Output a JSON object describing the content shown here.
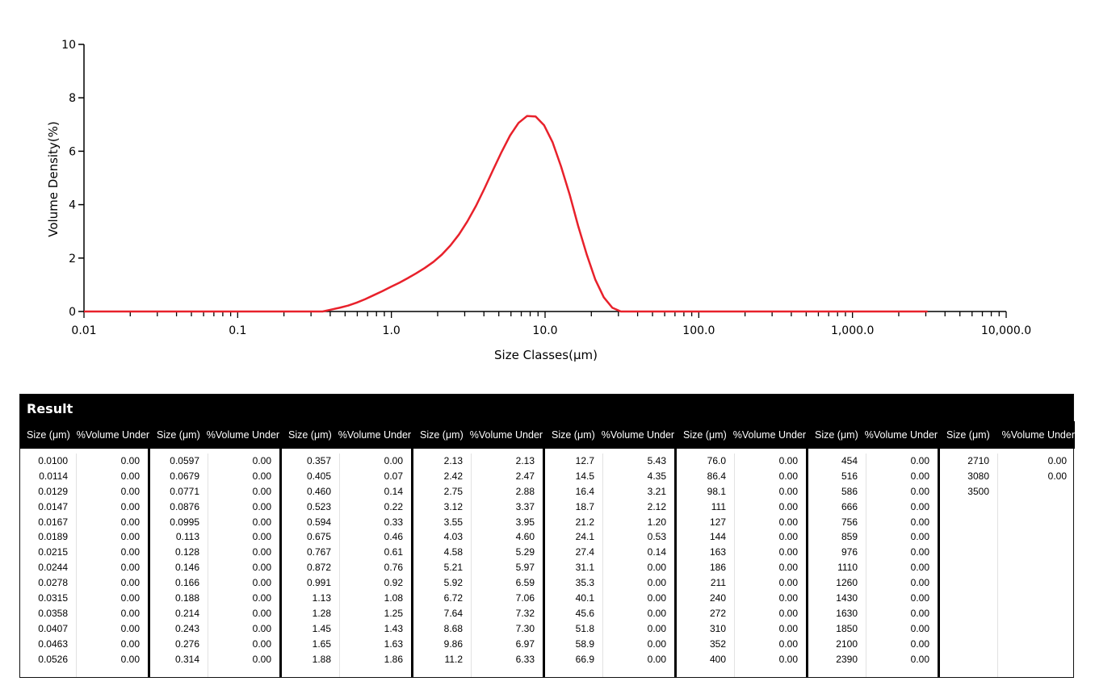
{
  "chart_data": {
    "type": "line",
    "xscale": "log",
    "xlim": [
      0.01,
      10000
    ],
    "ylim": [
      0,
      10
    ],
    "xlabel": "Size Classes(μm)",
    "ylabel": "Volume Density(%)",
    "xtick_labels": [
      "0.01",
      "0.1",
      "1.0",
      "10.0",
      "100.0",
      "1,000.0",
      "10,000.0"
    ],
    "yticks": [
      0,
      2,
      4,
      6,
      8,
      10
    ],
    "line_color": "#e8212b",
    "series": [
      {
        "x": [
          0.01,
          0.0114,
          0.0129,
          0.0147,
          0.0167,
          0.0189,
          0.0215,
          0.0244,
          0.0278,
          0.0315,
          0.0358,
          0.0407,
          0.0463,
          0.0526,
          0.0597,
          0.0679,
          0.0771,
          0.0876,
          0.0995,
          0.113,
          0.128,
          0.146,
          0.166,
          0.188,
          0.214,
          0.243,
          0.276,
          0.314,
          0.357,
          0.405,
          0.46,
          0.523,
          0.594,
          0.675,
          0.767,
          0.872,
          0.991,
          1.13,
          1.28,
          1.45,
          1.65,
          1.88,
          2.13,
          2.42,
          2.75,
          3.12,
          3.55,
          4.03,
          4.58,
          5.21,
          5.92,
          6.72,
          7.64,
          8.68,
          9.86,
          11.2,
          12.7,
          14.5,
          16.4,
          18.7,
          21.2,
          24.1,
          27.4,
          31.1,
          35.3,
          40.1,
          45.6,
          51.8,
          58.9,
          66.9,
          76.0,
          86.4,
          98.1,
          111,
          127,
          144,
          163,
          186,
          211,
          240,
          272,
          310,
          352,
          400,
          454,
          516,
          586,
          666,
          756,
          859,
          976,
          1110,
          1260,
          1430,
          1630,
          1850,
          2100,
          2390,
          2710,
          3080
        ],
        "y": [
          0,
          0,
          0,
          0,
          0,
          0,
          0,
          0,
          0,
          0,
          0,
          0,
          0,
          0,
          0,
          0,
          0,
          0,
          0,
          0,
          0,
          0,
          0,
          0,
          0,
          0,
          0,
          0,
          0.0,
          0.07,
          0.14,
          0.22,
          0.33,
          0.46,
          0.61,
          0.76,
          0.92,
          1.08,
          1.25,
          1.43,
          1.63,
          1.86,
          2.13,
          2.47,
          2.88,
          3.37,
          3.95,
          4.6,
          5.29,
          5.97,
          6.59,
          7.06,
          7.32,
          7.3,
          6.97,
          6.33,
          5.43,
          4.35,
          3.21,
          2.12,
          1.2,
          0.53,
          0.14,
          0,
          0,
          0,
          0,
          0,
          0,
          0,
          0,
          0,
          0,
          0,
          0,
          0,
          0,
          0,
          0,
          0,
          0,
          0,
          0,
          0,
          0,
          0,
          0,
          0,
          0,
          0,
          0,
          0,
          0,
          0,
          0,
          0,
          0,
          0,
          0,
          0
        ]
      }
    ]
  },
  "result": {
    "title": "Result",
    "size_header": "Size (μm)",
    "vol_header": "%Volume Under",
    "groups": [
      {
        "sizes": [
          "0.0100",
          "0.0114",
          "0.0129",
          "0.0147",
          "0.0167",
          "0.0189",
          "0.0215",
          "0.0244",
          "0.0278",
          "0.0315",
          "0.0358",
          "0.0407",
          "0.0463",
          "0.0526"
        ],
        "vols": [
          "0.00",
          "0.00",
          "0.00",
          "0.00",
          "0.00",
          "0.00",
          "0.00",
          "0.00",
          "0.00",
          "0.00",
          "0.00",
          "0.00",
          "0.00",
          "0.00"
        ]
      },
      {
        "sizes": [
          "0.0597",
          "0.0679",
          "0.0771",
          "0.0876",
          "0.0995",
          "0.113",
          "0.128",
          "0.146",
          "0.166",
          "0.188",
          "0.214",
          "0.243",
          "0.276",
          "0.314"
        ],
        "vols": [
          "0.00",
          "0.00",
          "0.00",
          "0.00",
          "0.00",
          "0.00",
          "0.00",
          "0.00",
          "0.00",
          "0.00",
          "0.00",
          "0.00",
          "0.00",
          "0.00"
        ]
      },
      {
        "sizes": [
          "0.357",
          "0.405",
          "0.460",
          "0.523",
          "0.594",
          "0.675",
          "0.767",
          "0.872",
          "0.991",
          "1.13",
          "1.28",
          "1.45",
          "1.65",
          "1.88"
        ],
        "vols": [
          "0.00",
          "0.07",
          "0.14",
          "0.22",
          "0.33",
          "0.46",
          "0.61",
          "0.76",
          "0.92",
          "1.08",
          "1.25",
          "1.43",
          "1.63",
          "1.86"
        ]
      },
      {
        "sizes": [
          "2.13",
          "2.42",
          "2.75",
          "3.12",
          "3.55",
          "4.03",
          "4.58",
          "5.21",
          "5.92",
          "6.72",
          "7.64",
          "8.68",
          "9.86",
          "11.2"
        ],
        "vols": [
          "2.13",
          "2.47",
          "2.88",
          "3.37",
          "3.95",
          "4.60",
          "5.29",
          "5.97",
          "6.59",
          "7.06",
          "7.32",
          "7.30",
          "6.97",
          "6.33"
        ]
      },
      {
        "sizes": [
          "12.7",
          "14.5",
          "16.4",
          "18.7",
          "21.2",
          "24.1",
          "27.4",
          "31.1",
          "35.3",
          "40.1",
          "45.6",
          "51.8",
          "58.9",
          "66.9"
        ],
        "vols": [
          "5.43",
          "4.35",
          "3.21",
          "2.12",
          "1.20",
          "0.53",
          "0.14",
          "0.00",
          "0.00",
          "0.00",
          "0.00",
          "0.00",
          "0.00",
          "0.00"
        ]
      },
      {
        "sizes": [
          "76.0",
          "86.4",
          "98.1",
          "111",
          "127",
          "144",
          "163",
          "186",
          "211",
          "240",
          "272",
          "310",
          "352",
          "400"
        ],
        "vols": [
          "0.00",
          "0.00",
          "0.00",
          "0.00",
          "0.00",
          "0.00",
          "0.00",
          "0.00",
          "0.00",
          "0.00",
          "0.00",
          "0.00",
          "0.00",
          "0.00"
        ]
      },
      {
        "sizes": [
          "454",
          "516",
          "586",
          "666",
          "756",
          "859",
          "976",
          "1110",
          "1260",
          "1430",
          "1630",
          "1850",
          "2100",
          "2390"
        ],
        "vols": [
          "0.00",
          "0.00",
          "0.00",
          "0.00",
          "0.00",
          "0.00",
          "0.00",
          "0.00",
          "0.00",
          "0.00",
          "0.00",
          "0.00",
          "0.00",
          "0.00"
        ]
      },
      {
        "sizes": [
          "2710",
          "3080",
          "3500"
        ],
        "vols": [
          "0.00",
          "0.00"
        ]
      }
    ]
  }
}
